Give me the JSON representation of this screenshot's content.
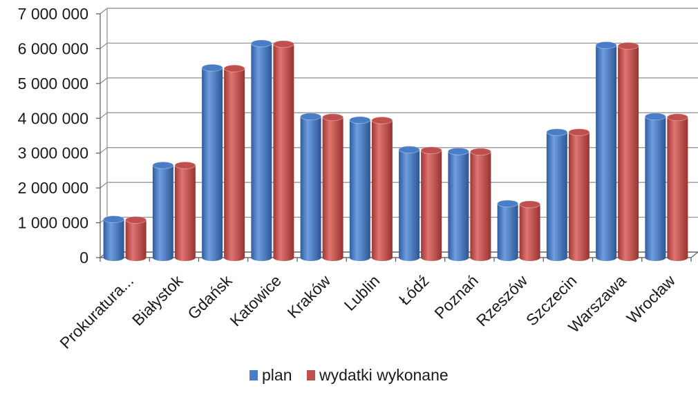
{
  "chart_data": {
    "type": "bar",
    "style": "3d-cylinder",
    "title": "",
    "xlabel": "",
    "ylabel": "",
    "categories": [
      "Prokuratura...",
      "Białystok",
      "Gdańsk",
      "Katowice",
      "Kraków",
      "Lublin",
      "Łódź",
      "Poznań",
      "Rzeszów",
      "Szczecin",
      "Warszawa",
      "Wrocław"
    ],
    "series": [
      {
        "name": "plan",
        "color": "#4a7dc8",
        "values": [
          1100000,
          2650000,
          5450000,
          6150000,
          4050000,
          3950000,
          3100000,
          3050000,
          1550000,
          3600000,
          6100000,
          4050000
        ]
      },
      {
        "name": "wydatki wykonane",
        "color": "#c0504d",
        "values": [
          1080000,
          2650000,
          5430000,
          6130000,
          4030000,
          3940000,
          3080000,
          3040000,
          1530000,
          3600000,
          6080000,
          4030000
        ]
      }
    ],
    "ylim": [
      0,
      7000000
    ],
    "yticks": [
      "0",
      "1 000 000",
      "2 000 000",
      "3 000 000",
      "4 000 000",
      "5 000 000",
      "6 000 000",
      "7 000 000"
    ],
    "grid": true,
    "legend_position": "bottom"
  }
}
